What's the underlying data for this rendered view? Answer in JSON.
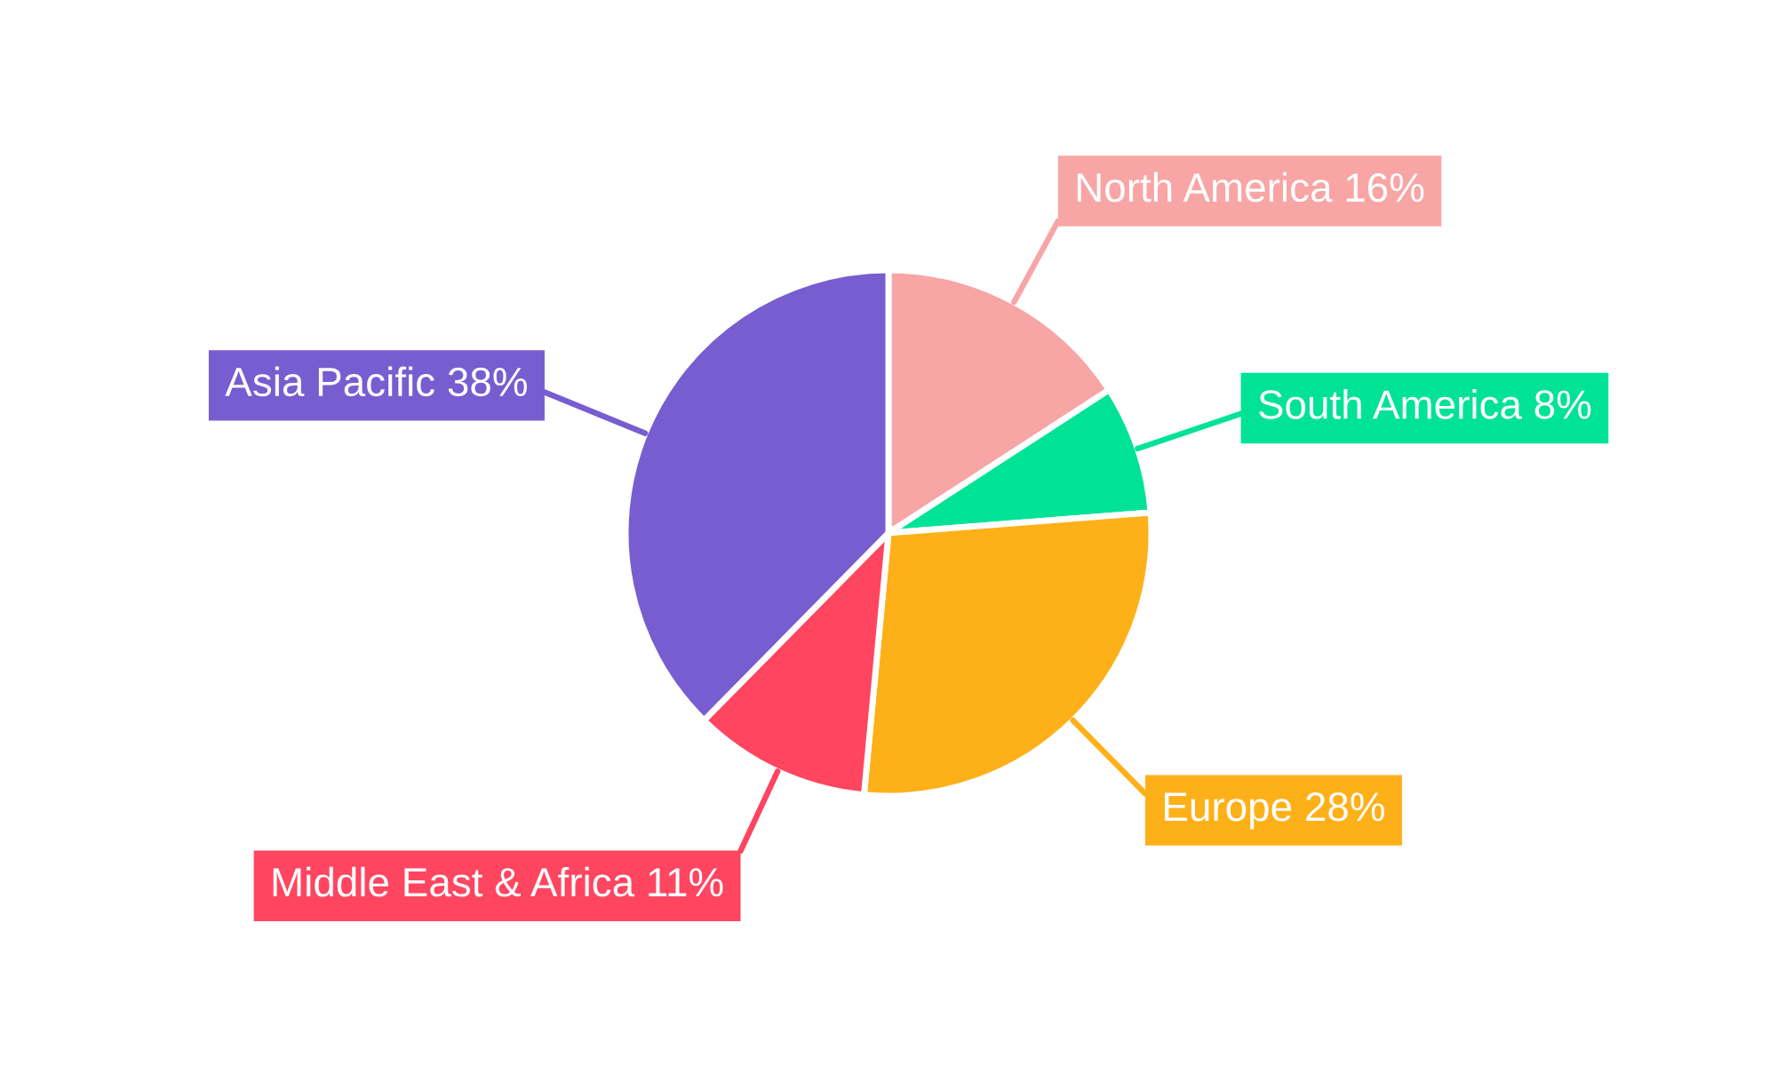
{
  "chart_data": {
    "type": "pie",
    "categories": [
      "North America",
      "South America",
      "Europe",
      "Middle East & Africa",
      "Asia Pacific"
    ],
    "values": [
      16,
      8,
      28,
      11,
      38
    ],
    "value_labels": [
      "16%",
      "8%",
      "28%",
      "11%",
      "38%"
    ],
    "colors": [
      "#f8a5a6",
      "#00e396",
      "#feb019",
      "#ff4560",
      "#775dd0"
    ],
    "legend": false
  }
}
